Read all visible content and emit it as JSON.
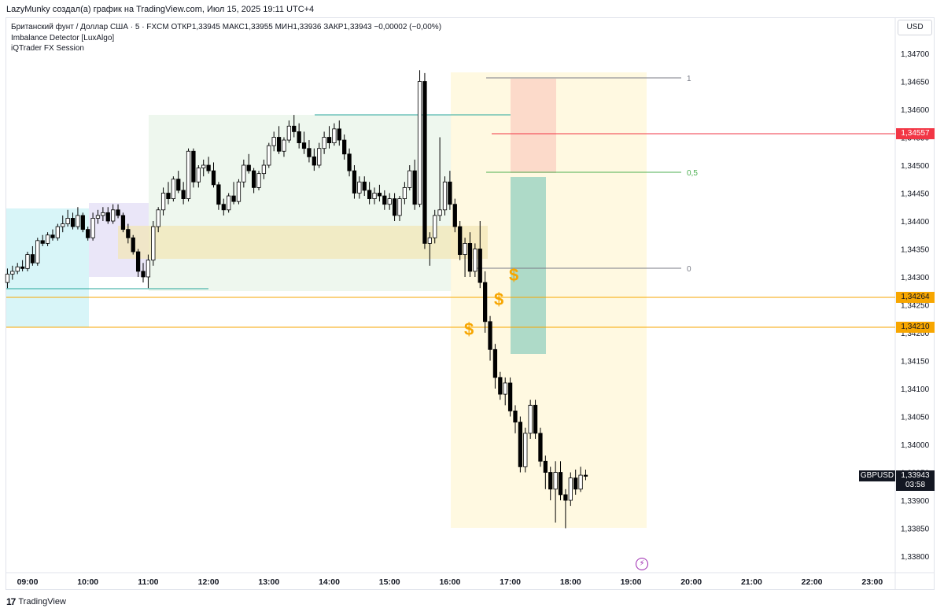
{
  "header": {
    "attribution": "LazyMunky создал(а) график на TradingView.com, Июл 15, 2025 19:11 UTC+4"
  },
  "legend": {
    "symbol_line": "Британский фунт / Доллар США · 5 · FXCM  ОТКР1,33945  МАКС1,33955  МИН1,33936  ЗАКР1,33943  −0,00002 (−0,00%)",
    "indicator_1": "Imbalance Detector [LuxAlgo]",
    "indicator_2": "iQTrader FX Session"
  },
  "price_scale": {
    "currency_button": "USD",
    "labels": [
      "1,34700",
      "1,34650",
      "1,34600",
      "1,34550",
      "1,34500",
      "1,34450",
      "1,34400",
      "1,34350",
      "1,34300",
      "1,34250",
      "1,34200",
      "1,34150",
      "1,34100",
      "1,34050",
      "1,34000",
      "1,33950",
      "1,33900",
      "1,33850",
      "1,33800"
    ],
    "range": [
      1.3378,
      1.3472
    ],
    "tags": {
      "red_level": {
        "text": "1,34557",
        "color": "#f23645"
      },
      "orange_level_1": {
        "text": "1,34264",
        "color": "#f7a600"
      },
      "orange_level_2": {
        "text": "1,34210",
        "color": "#f7a600"
      }
    },
    "symbol_tag": "GBPUSD",
    "last_price": "1,33943",
    "countdown": "03:58"
  },
  "time_scale": {
    "labels": [
      "09:00",
      "10:00",
      "11:00",
      "12:00",
      "13:00",
      "14:00",
      "15:00",
      "16:00",
      "17:00",
      "18:00",
      "19:00",
      "20:00",
      "21:00",
      "22:00",
      "23:00"
    ]
  },
  "fib": {
    "levels": [
      {
        "label": "1",
        "price": 1.3466,
        "color": "#787b86"
      },
      {
        "label": "0,5",
        "price": 1.34485,
        "color": "#4caf50"
      },
      {
        "label": "0",
        "price": 1.34315,
        "color": "#787b86"
      }
    ]
  },
  "colors": {
    "up_candle": "#ffffff",
    "down_candle": "#000000",
    "wick": "#000000",
    "asia_session": "#b2ebf2",
    "london_premarket": "#e1dcf5",
    "london_session": "#e3f2e3",
    "ny_session": "#fff8dc",
    "short_risk": "#fbd5c5",
    "short_reward": "#a5d6c5",
    "imbalance_zone": "#f2e6b3"
  },
  "markers": {
    "dollar_sign": "$"
  },
  "footer": {
    "brand": "TradingView"
  },
  "chart_data": {
    "type": "candlestick",
    "symbol": "GBPUSD",
    "timeframe": "5",
    "last": {
      "open": 1.33945,
      "high": 1.33955,
      "low": 1.33936,
      "close": 1.33943
    },
    "ylim": [
      1.3378,
      1.3472
    ],
    "candles": [
      [
        1.3429,
        1.34315,
        1.3428,
        1.34305
      ],
      [
        1.34305,
        1.3432,
        1.34295,
        1.3431
      ],
      [
        1.3431,
        1.34325,
        1.34305,
        1.34318
      ],
      [
        1.34318,
        1.3433,
        1.3431,
        1.34315
      ],
      [
        1.34315,
        1.34345,
        1.3431,
        1.3434
      ],
      [
        1.3434,
        1.34355,
        1.3432,
        1.34325
      ],
      [
        1.34325,
        1.3437,
        1.3432,
        1.34365
      ],
      [
        1.34365,
        1.34375,
        1.34355,
        1.3436
      ],
      [
        1.3436,
        1.3438,
        1.34355,
        1.34375
      ],
      [
        1.34375,
        1.34385,
        1.34365,
        1.3437
      ],
      [
        1.3437,
        1.34395,
        1.34365,
        1.3439
      ],
      [
        1.3439,
        1.3441,
        1.3438,
        1.34395
      ],
      [
        1.34395,
        1.3442,
        1.3439,
        1.34405
      ],
      [
        1.34405,
        1.34415,
        1.34385,
        1.3439
      ],
      [
        1.3439,
        1.34425,
        1.34385,
        1.3441
      ],
      [
        1.3441,
        1.34415,
        1.3438,
        1.34385
      ],
      [
        1.34385,
        1.3439,
        1.34365,
        1.3437
      ],
      [
        1.3437,
        1.34415,
        1.34365,
        1.34405
      ],
      [
        1.34405,
        1.3442,
        1.34395,
        1.3441
      ],
      [
        1.3441,
        1.34425,
        1.344,
        1.34415
      ],
      [
        1.34415,
        1.34425,
        1.34395,
        1.344
      ],
      [
        1.344,
        1.3443,
        1.34395,
        1.3442
      ],
      [
        1.3442,
        1.3443,
        1.34405,
        1.3441
      ],
      [
        1.3441,
        1.34415,
        1.3438,
        1.34385
      ],
      [
        1.34385,
        1.34395,
        1.3436,
        1.3437
      ],
      [
        1.3437,
        1.34375,
        1.3434,
        1.34345
      ],
      [
        1.34345,
        1.3435,
        1.343,
        1.3431
      ],
      [
        1.3431,
        1.34325,
        1.3429,
        1.343
      ],
      [
        1.343,
        1.3434,
        1.3428,
        1.3433
      ],
      [
        1.3433,
        1.344,
        1.3432,
        1.3439
      ],
      [
        1.3439,
        1.34425,
        1.3438,
        1.3442
      ],
      [
        1.3442,
        1.3446,
        1.3441,
        1.3445
      ],
      [
        1.3445,
        1.3447,
        1.3443,
        1.3444
      ],
      [
        1.3444,
        1.3448,
        1.34435,
        1.34475
      ],
      [
        1.34475,
        1.3449,
        1.3445,
        1.34455
      ],
      [
        1.34455,
        1.3447,
        1.3443,
        1.3444
      ],
      [
        1.3444,
        1.3453,
        1.34435,
        1.34525
      ],
      [
        1.34525,
        1.3453,
        1.3446,
        1.3447
      ],
      [
        1.3447,
        1.345,
        1.3446,
        1.34495
      ],
      [
        1.34495,
        1.3451,
        1.3448,
        1.345
      ],
      [
        1.345,
        1.34515,
        1.34485,
        1.3449
      ],
      [
        1.3449,
        1.34505,
        1.3446,
        1.34465
      ],
      [
        1.34465,
        1.3447,
        1.3442,
        1.3443
      ],
      [
        1.3443,
        1.3444,
        1.3441,
        1.3442
      ],
      [
        1.3442,
        1.3445,
        1.34415,
        1.34445
      ],
      [
        1.34445,
        1.3447,
        1.3443,
        1.34435
      ],
      [
        1.34435,
        1.34475,
        1.3443,
        1.3447
      ],
      [
        1.3447,
        1.3451,
        1.3446,
        1.345
      ],
      [
        1.345,
        1.3452,
        1.34485,
        1.3449
      ],
      [
        1.3449,
        1.34495,
        1.3445,
        1.3446
      ],
      [
        1.3446,
        1.3449,
        1.34455,
        1.34485
      ],
      [
        1.34485,
        1.3451,
        1.34475,
        1.345
      ],
      [
        1.345,
        1.3454,
        1.34495,
        1.34535
      ],
      [
        1.34535,
        1.3456,
        1.34525,
        1.3455
      ],
      [
        1.3455,
        1.3457,
        1.3452,
        1.34525
      ],
      [
        1.34525,
        1.3455,
        1.34515,
        1.34545
      ],
      [
        1.34545,
        1.3458,
        1.3454,
        1.3457
      ],
      [
        1.3457,
        1.3459,
        1.3455,
        1.3456
      ],
      [
        1.3456,
        1.34575,
        1.3453,
        1.3454
      ],
      [
        1.3454,
        1.3456,
        1.3452,
        1.3453
      ],
      [
        1.3453,
        1.34545,
        1.34505,
        1.34515
      ],
      [
        1.34515,
        1.3453,
        1.3449,
        1.345
      ],
      [
        1.345,
        1.3454,
        1.34495,
        1.3453
      ],
      [
        1.3453,
        1.3456,
        1.3452,
        1.3455
      ],
      [
        1.3455,
        1.3457,
        1.3453,
        1.3454
      ],
      [
        1.3454,
        1.34575,
        1.34535,
        1.34565
      ],
      [
        1.34565,
        1.3458,
        1.34535,
        1.34545
      ],
      [
        1.34545,
        1.34555,
        1.3451,
        1.3452
      ],
      [
        1.3452,
        1.3453,
        1.3448,
        1.3449
      ],
      [
        1.3449,
        1.345,
        1.3444,
        1.3445
      ],
      [
        1.3445,
        1.3448,
        1.3444,
        1.3447
      ],
      [
        1.3447,
        1.3448,
        1.34445,
        1.34455
      ],
      [
        1.34455,
        1.3447,
        1.3443,
        1.3444
      ],
      [
        1.3444,
        1.3446,
        1.3443,
        1.3445
      ],
      [
        1.3445,
        1.34465,
        1.34435,
        1.34445
      ],
      [
        1.34445,
        1.34455,
        1.3442,
        1.3443
      ],
      [
        1.3443,
        1.3445,
        1.3442,
        1.3444
      ],
      [
        1.3444,
        1.3445,
        1.344,
        1.3441
      ],
      [
        1.3441,
        1.34445,
        1.344,
        1.3444
      ],
      [
        1.3444,
        1.3447,
        1.3443,
        1.3446
      ],
      [
        1.3446,
        1.345,
        1.34455,
        1.3449
      ],
      [
        1.3449,
        1.3451,
        1.3442,
        1.3443
      ],
      [
        1.3443,
        1.3467,
        1.34425,
        1.3465
      ],
      [
        1.3465,
        1.34665,
        1.3435,
        1.3436
      ],
      [
        1.3436,
        1.3438,
        1.3432,
        1.3437
      ],
      [
        1.3437,
        1.3442,
        1.3436,
        1.3441
      ],
      [
        1.3441,
        1.3455,
        1.344,
        1.3442
      ],
      [
        1.3442,
        1.3448,
        1.3441,
        1.3447
      ],
      [
        1.3447,
        1.3449,
        1.3442,
        1.3443
      ],
      [
        1.3443,
        1.3444,
        1.3438,
        1.3439
      ],
      [
        1.3439,
        1.344,
        1.3433,
        1.3434
      ],
      [
        1.3434,
        1.3437,
        1.343,
        1.3436
      ],
      [
        1.3436,
        1.3438,
        1.343,
        1.3431
      ],
      [
        1.3431,
        1.3436,
        1.343,
        1.3435
      ],
      [
        1.3435,
        1.344,
        1.3428,
        1.3429
      ],
      [
        1.3429,
        1.3431,
        1.342,
        1.3422
      ],
      [
        1.3422,
        1.3423,
        1.3415,
        1.3417
      ],
      [
        1.3417,
        1.3418,
        1.341,
        1.3412
      ],
      [
        1.3412,
        1.3413,
        1.3408,
        1.3409
      ],
      [
        1.3409,
        1.3412,
        1.3407,
        1.3411
      ],
      [
        1.3411,
        1.3412,
        1.3405,
        1.3406
      ],
      [
        1.3406,
        1.3407,
        1.3402,
        1.3404
      ],
      [
        1.3404,
        1.3405,
        1.3395,
        1.3396
      ],
      [
        1.3396,
        1.3403,
        1.3395,
        1.3402
      ],
      [
        1.3402,
        1.3408,
        1.3401,
        1.3407
      ],
      [
        1.3407,
        1.3408,
        1.3401,
        1.3402
      ],
      [
        1.3402,
        1.3403,
        1.3396,
        1.3397
      ],
      [
        1.3397,
        1.3398,
        1.3392,
        1.3395
      ],
      [
        1.3395,
        1.3396,
        1.339,
        1.3392
      ],
      [
        1.3392,
        1.3397,
        1.3386,
        1.3395
      ],
      [
        1.3395,
        1.3397,
        1.339,
        1.3391
      ],
      [
        1.3391,
        1.3392,
        1.3385,
        1.339
      ],
      [
        1.339,
        1.3395,
        1.3389,
        1.3394
      ],
      [
        1.3394,
        1.33955,
        1.3391,
        1.3392
      ],
      [
        1.3392,
        1.3396,
        1.33915,
        1.33945
      ],
      [
        1.33945,
        1.33955,
        1.33936,
        1.33943
      ]
    ],
    "first_candle_time": "08:40",
    "horizontal_levels": [
      1.34557,
      1.34264,
      1.3421
    ]
  }
}
